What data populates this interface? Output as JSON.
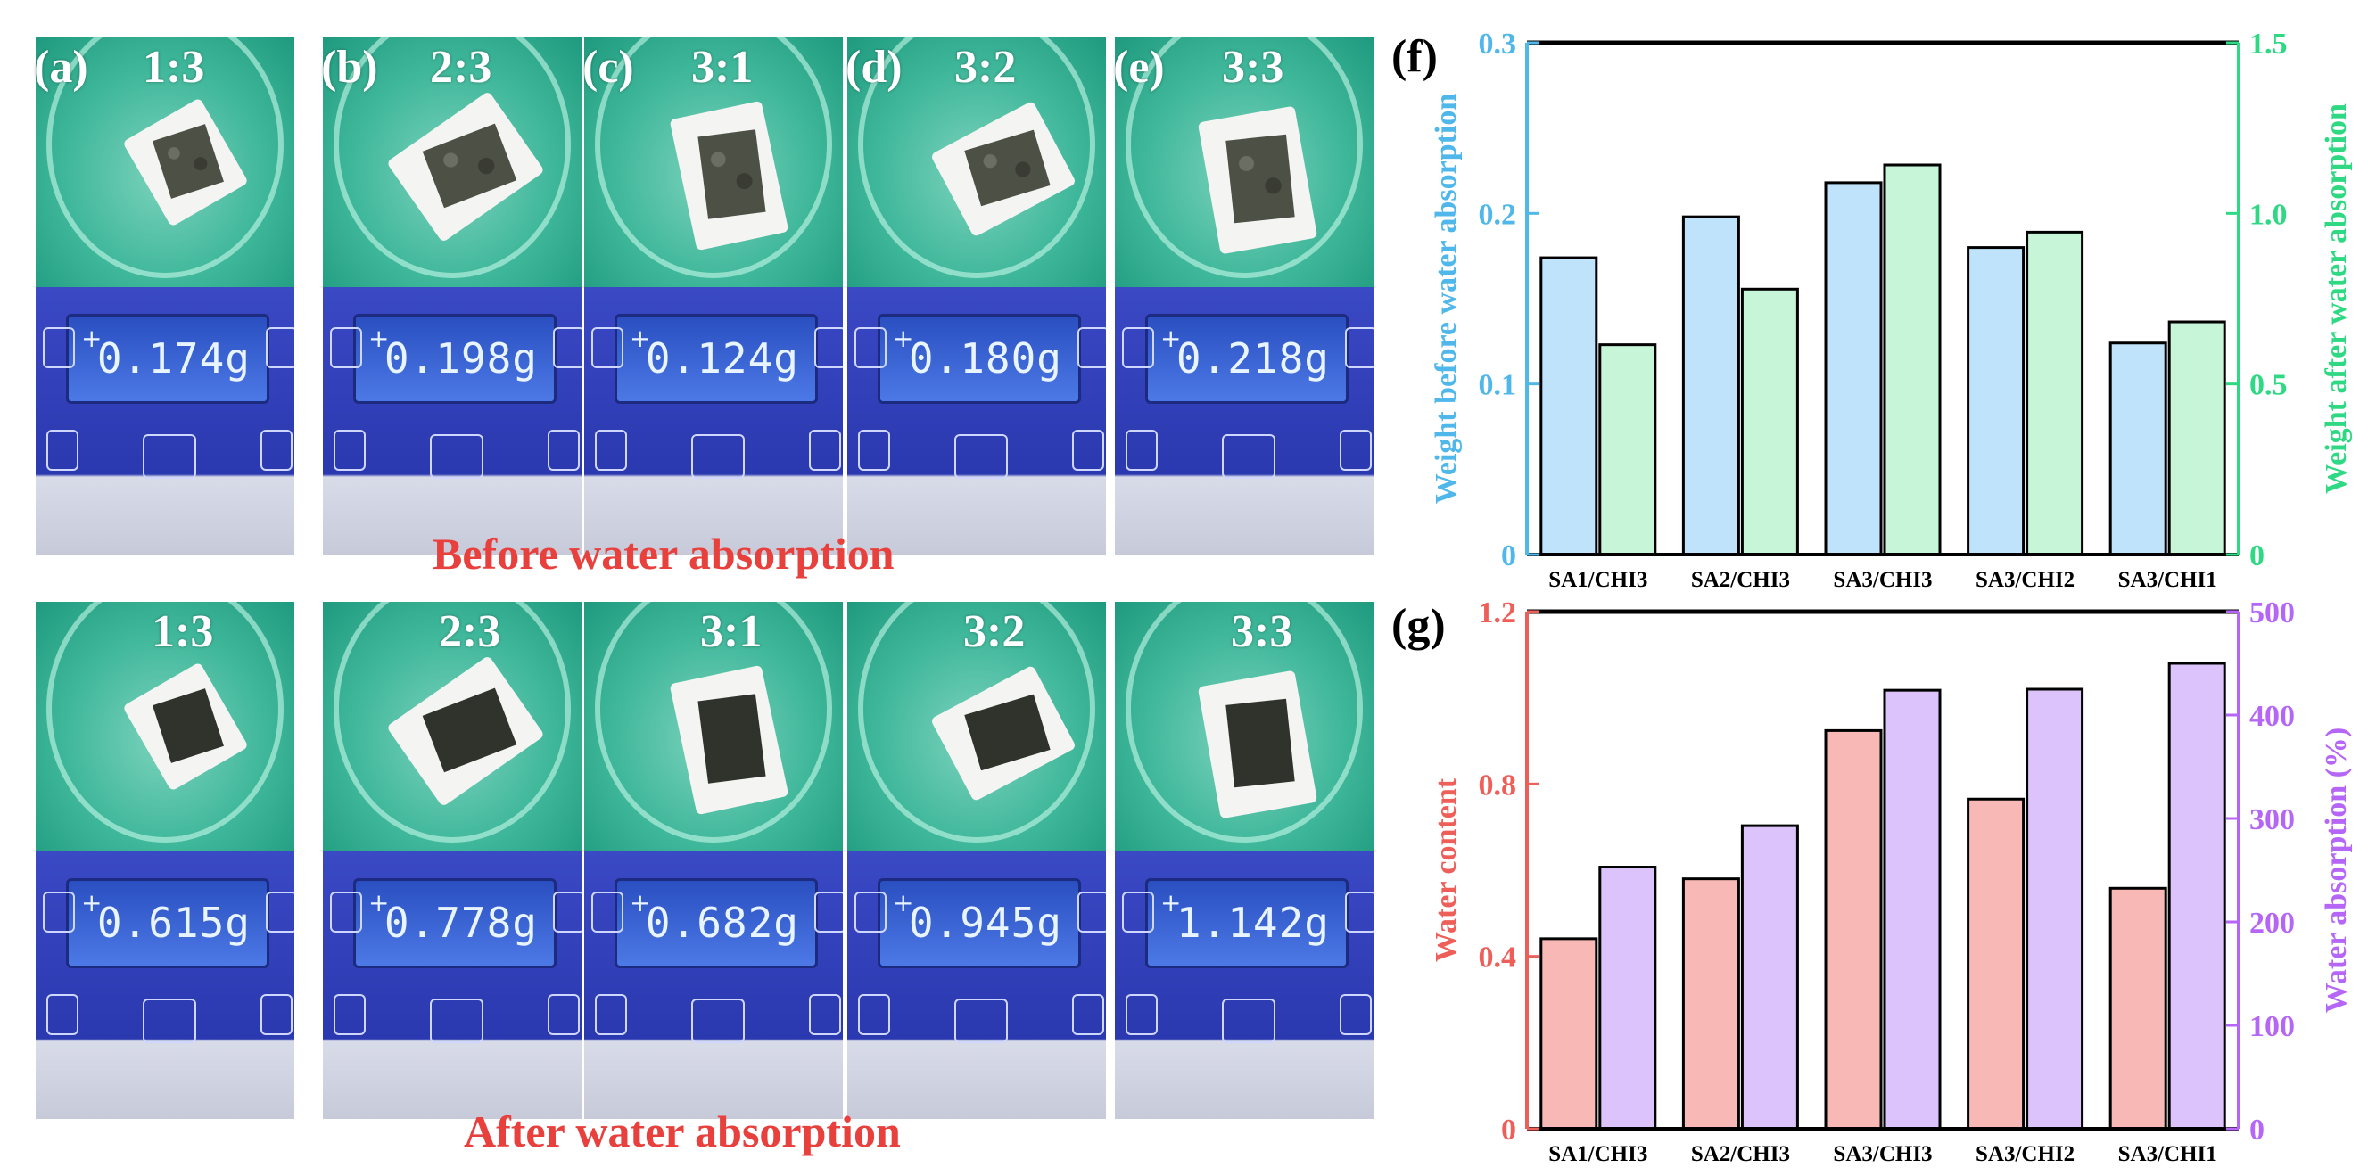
{
  "figure": {
    "panel_letters": [
      "(a)",
      "(b)",
      "(c)",
      "(d)",
      "(e)"
    ],
    "ratios": [
      "1:3",
      "2:3",
      "3:1",
      "3:2",
      "3:3"
    ],
    "before_readings": [
      "0.174g",
      "0.198g",
      "0.124g",
      "0.180g",
      "0.218g"
    ],
    "after_readings": [
      "0.615g",
      "0.778g",
      "0.682g",
      "0.945g",
      "1.142g"
    ],
    "before_caption": "Before water absorption",
    "after_caption": "After water absorption"
  },
  "colors": {
    "blue_bar": "#bfe3fb",
    "green_bar": "#c7f5d8",
    "red_bar": "#f8b9b6",
    "purple_bar": "#ddc3fb",
    "left_axis_f": "#4fb7ea",
    "right_axis_f": "#2fd983",
    "left_axis_g": "#ee5f5a",
    "right_axis_g": "#b566f6",
    "caption": "#e8403c"
  },
  "chart_data": [
    {
      "panel": "(f)",
      "type": "bar",
      "categories": [
        "SA1/CHI3",
        "SA2/CHI3",
        "SA3/CHI3",
        "SA3/CHI2",
        "SA3/CHI1"
      ],
      "series": [
        {
          "name": "Weight before water absorption",
          "axis": "left",
          "values": [
            0.174,
            0.198,
            0.218,
            0.18,
            0.124
          ]
        },
        {
          "name": "Weight after water absorption",
          "axis": "right",
          "values": [
            0.615,
            0.778,
            1.142,
            0.945,
            0.682
          ]
        }
      ],
      "ylabel": "Weight before water absorption",
      "ylabel_right": "Weight after water absorption",
      "ylim": [
        0,
        0.3
      ],
      "ylim_right": [
        0,
        1.5
      ],
      "yticks": [
        0,
        0.1,
        0.2,
        0.3
      ],
      "ytick_labels": [
        "0",
        "0.1",
        "0.2",
        "0.3"
      ],
      "yticks_right": [
        0,
        0.5,
        1.0,
        1.5
      ],
      "ytick_labels_right": [
        "0",
        "0.5",
        "1.0",
        "1.5"
      ]
    },
    {
      "panel": "(g)",
      "type": "bar",
      "categories": [
        "SA1/CHI3",
        "SA2/CHI3",
        "SA3/CHI3",
        "SA3/CHI2",
        "SA3/CHI1"
      ],
      "series": [
        {
          "name": "Water content",
          "axis": "left",
          "values": [
            0.441,
            0.58,
            0.924,
            0.765,
            0.558
          ]
        },
        {
          "name": "Water absorption (%)",
          "axis": "right",
          "values": [
            253,
            293,
            424,
            425,
            450
          ]
        }
      ],
      "ylabel": "Water content",
      "ylabel_right": "Water absorption (%)",
      "ylim": [
        0,
        1.2
      ],
      "ylim_right": [
        0,
        500
      ],
      "yticks": [
        0,
        0.4,
        0.8,
        1.2
      ],
      "ytick_labels": [
        "0",
        "0.4",
        "0.8",
        "1.2"
      ],
      "yticks_right": [
        0,
        100,
        200,
        300,
        400,
        500
      ],
      "ytick_labels_right": [
        "0",
        "100",
        "200",
        "300",
        "400",
        "500"
      ]
    }
  ]
}
